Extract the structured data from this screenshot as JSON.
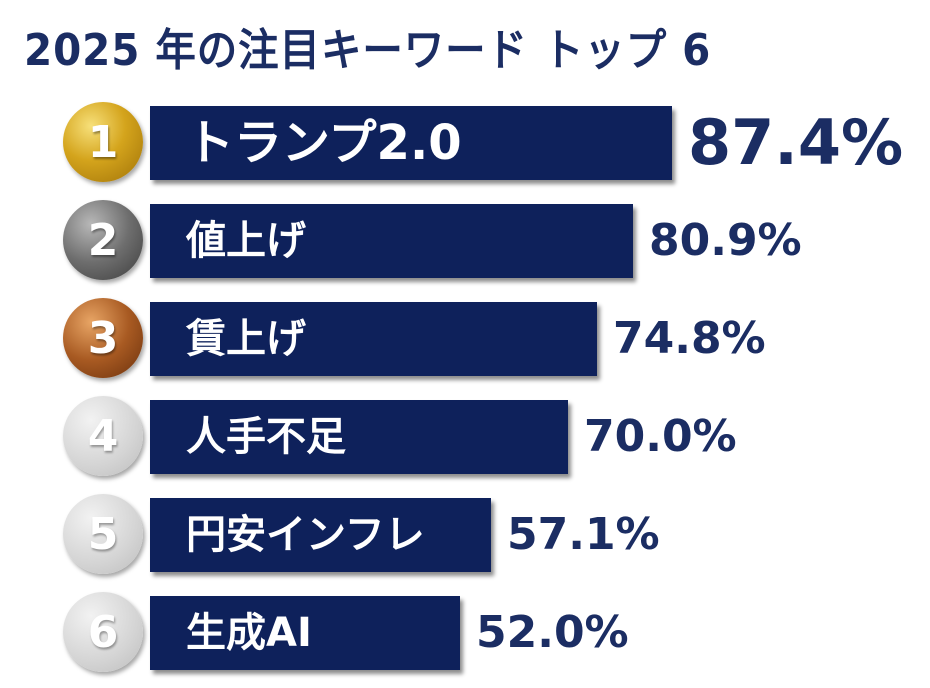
{
  "chart_data": {
    "type": "bar",
    "orientation": "horizontal",
    "title": "2025 年の注目キーワード トップ 6",
    "categories": [
      "トランプ2.0",
      "値上げ",
      "賃上げ",
      "人手不足",
      "円安インフレ",
      "生成AI"
    ],
    "ranks": [
      "1",
      "2",
      "3",
      "4",
      "5",
      "6"
    ],
    "values": [
      87.4,
      80.9,
      74.8,
      70.0,
      57.1,
      52.0
    ],
    "value_labels": [
      "87.4%",
      "80.9%",
      "74.8%",
      "70.0%",
      "57.1%",
      "52.0%"
    ],
    "xlim": [
      0,
      100
    ],
    "grid": false,
    "legend": "none",
    "colors": {
      "bar": "#0e215b",
      "title_text": "#1b2d63",
      "value_text": "#1b2d63",
      "medal_gold": "#d4a41c",
      "medal_silver": "#6e6e6e",
      "medal_bronze": "#a85a22",
      "medal_plain": "#d4d4d4"
    },
    "medal_styles": [
      "gold",
      "silver",
      "bronze",
      "plain",
      "plain",
      "plain"
    ]
  }
}
